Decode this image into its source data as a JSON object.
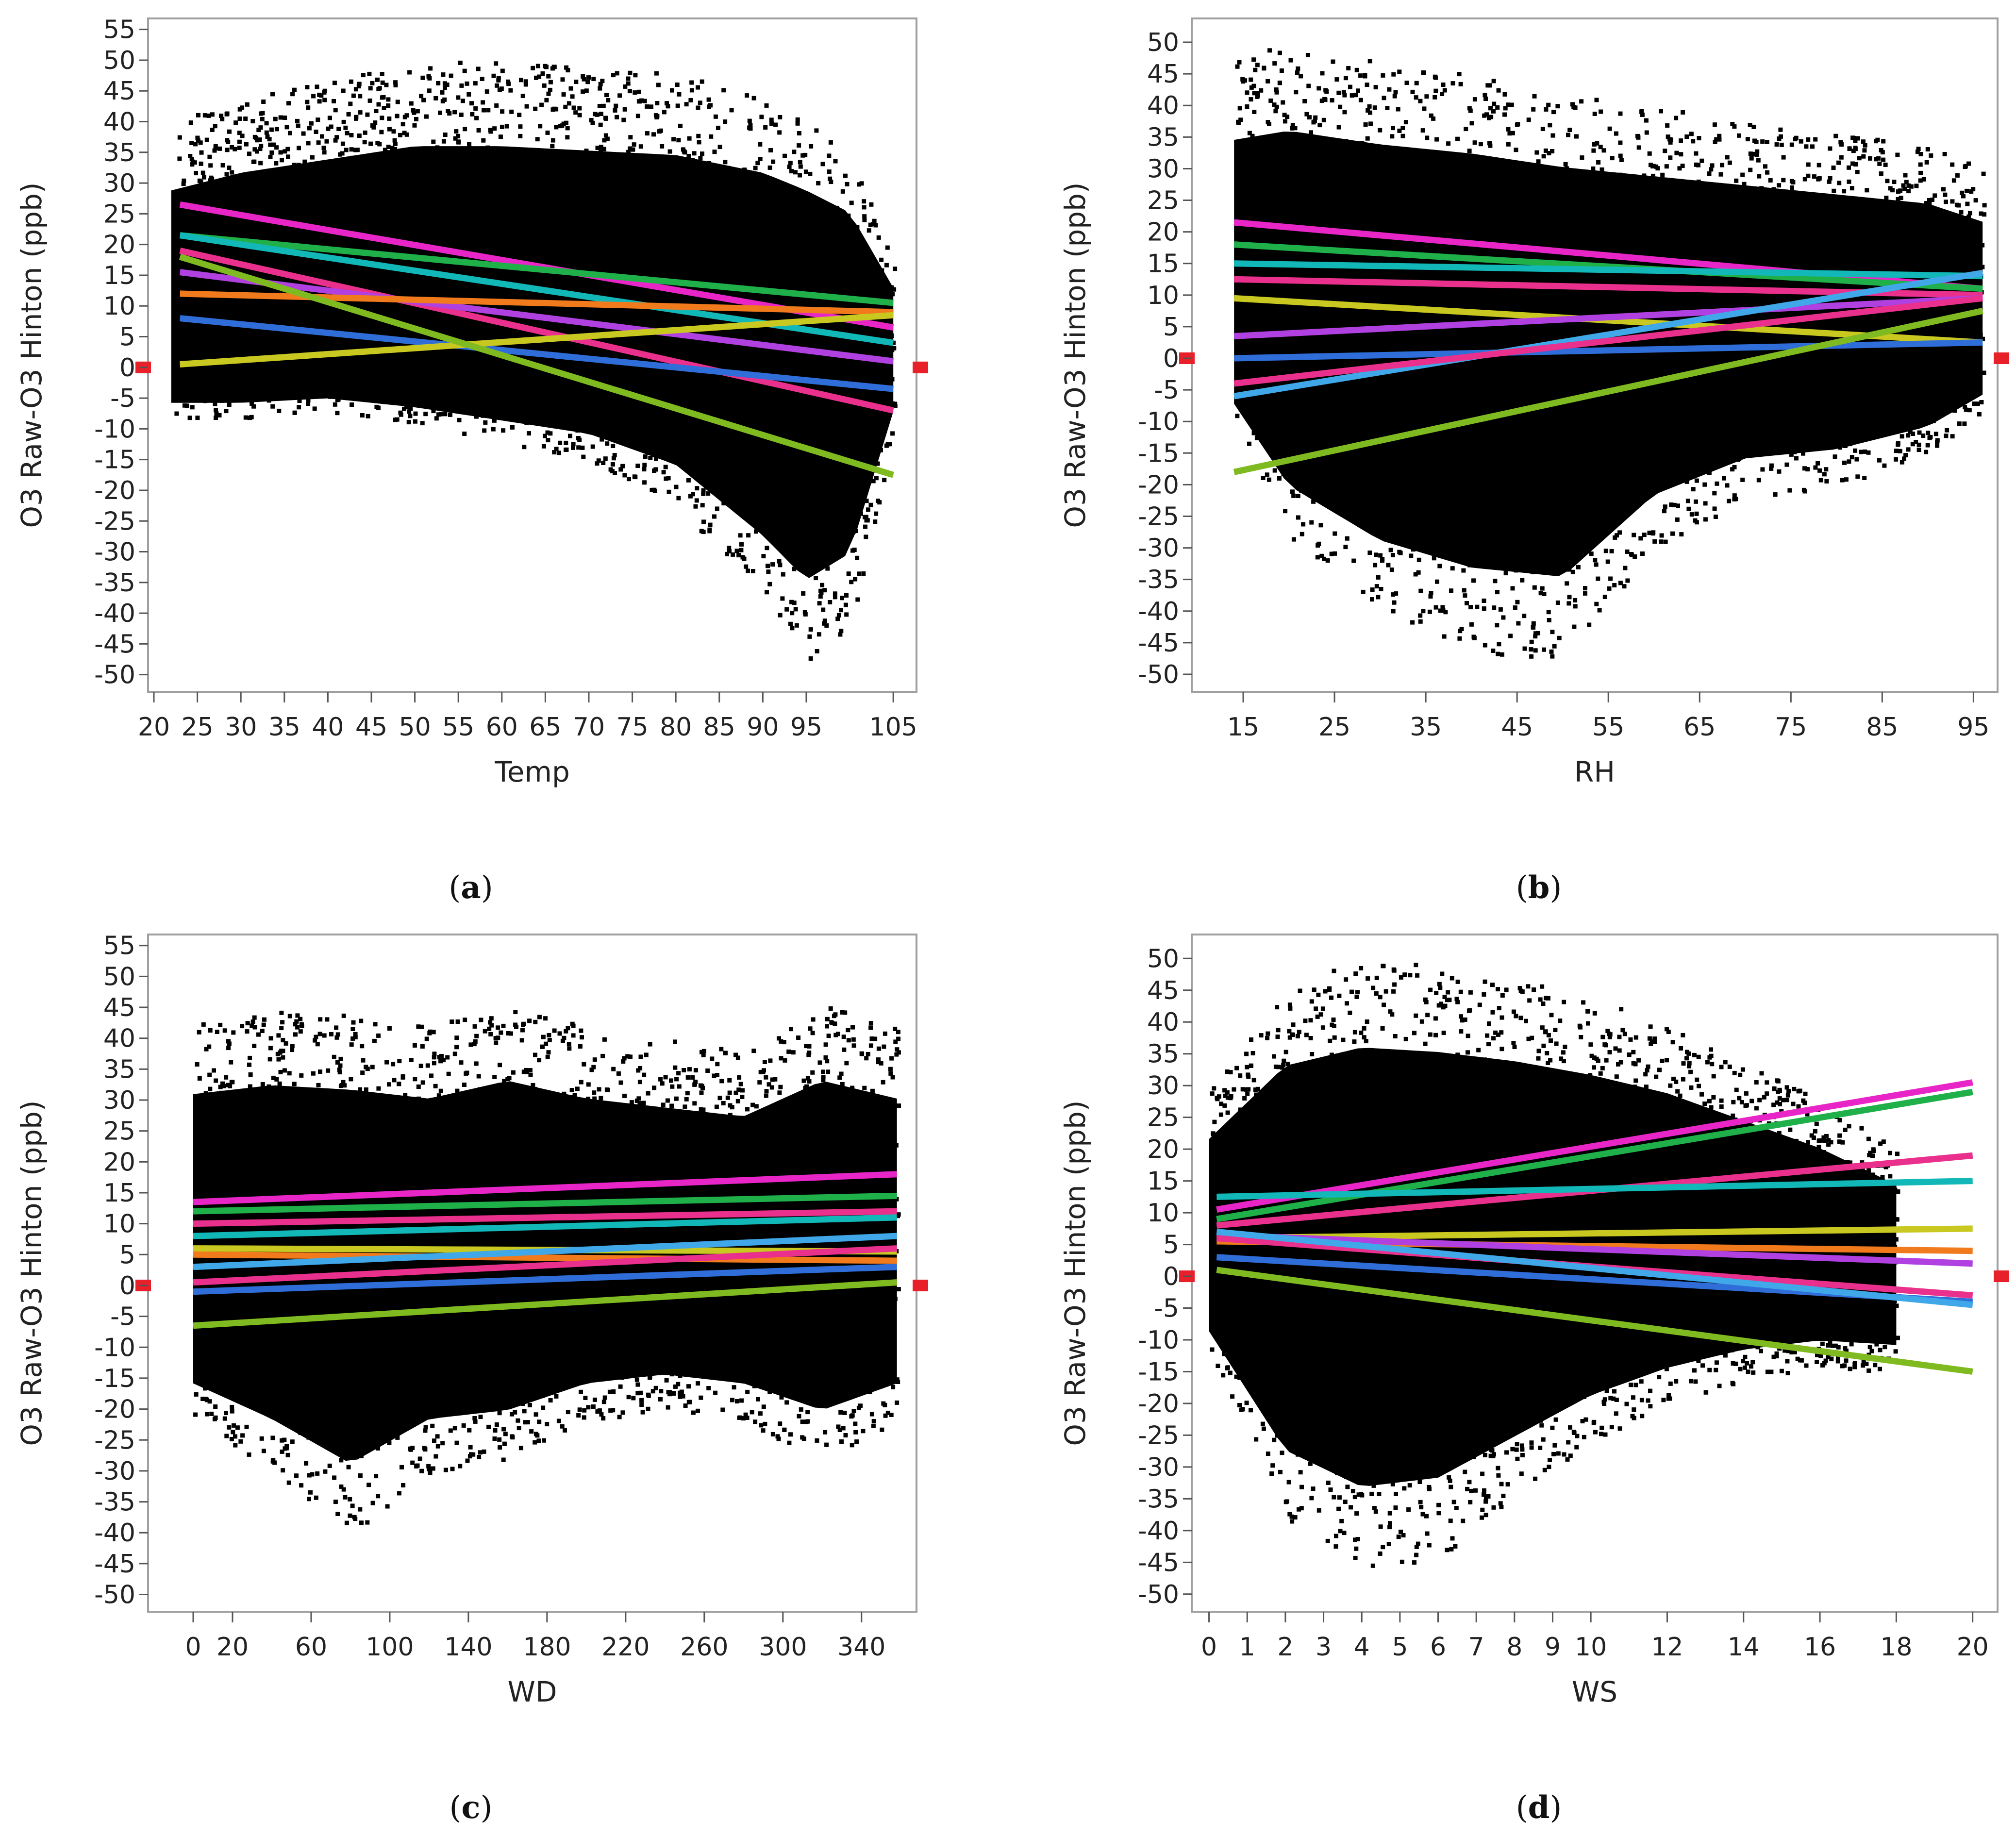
{
  "colors": {
    "scatter": "#000000",
    "frame": "#a0a0a0",
    "ref_marker": "#e8202a",
    "magenta": "#e826c8",
    "green": "#1fb04a",
    "teal": "#12b8b8",
    "pink": "#e8308c",
    "blue": "#2f6ed8",
    "orange": "#f07a1c",
    "yellow": "#c8c820",
    "lime": "#7fbb20",
    "violet": "#b040e0",
    "sky": "#40a8e8"
  },
  "chart_data": [
    {
      "panel": "a",
      "type": "scatter",
      "caption": "a",
      "xlabel": "Temp",
      "ylabel": "O3 Raw-O3 Hinton (ppb)",
      "xlim": [
        20,
        107
      ],
      "ylim": [
        -52,
        56
      ],
      "xticks": [
        20,
        25,
        30,
        35,
        40,
        45,
        50,
        55,
        60,
        65,
        70,
        75,
        80,
        85,
        90,
        95,
        105
      ],
      "yticks": [
        55,
        50,
        45,
        40,
        35,
        30,
        25,
        20,
        15,
        10,
        5,
        0,
        -5,
        -10,
        -15,
        -20,
        -25,
        -30,
        -35,
        -40,
        -45,
        -50
      ],
      "reference_y": 0,
      "scatter_envelope": {
        "x": [
          22,
          30,
          40,
          50,
          60,
          70,
          80,
          90,
          95,
          100,
          105
        ],
        "upper": [
          40,
          44,
          47,
          50,
          50,
          49,
          48,
          44,
          40,
          35,
          18
        ],
        "lower": [
          -8,
          -8,
          -7,
          -9,
          -12,
          -15,
          -22,
          -38,
          -48,
          -42,
          -10
        ]
      },
      "series": [
        {
          "color": "magenta",
          "x": [
            23,
            105
          ],
          "y": [
            26.5,
            6.5
          ]
        },
        {
          "color": "green",
          "x": [
            23,
            105
          ],
          "y": [
            21.5,
            10.5
          ]
        },
        {
          "color": "teal",
          "x": [
            23,
            105
          ],
          "y": [
            21.5,
            4
          ]
        },
        {
          "color": "pink",
          "x": [
            23,
            105
          ],
          "y": [
            19,
            -7
          ]
        },
        {
          "color": "violet",
          "x": [
            23,
            105
          ],
          "y": [
            15.5,
            1
          ]
        },
        {
          "color": "orange",
          "x": [
            23,
            105
          ],
          "y": [
            12,
            9
          ]
        },
        {
          "color": "blue",
          "x": [
            23,
            105
          ],
          "y": [
            8,
            -3.5
          ]
        },
        {
          "color": "yellow",
          "x": [
            23,
            105
          ],
          "y": [
            0.5,
            8.5
          ]
        },
        {
          "color": "lime",
          "x": [
            23,
            105
          ],
          "y": [
            18,
            -17.5
          ]
        }
      ]
    },
    {
      "panel": "b",
      "type": "scatter",
      "caption": "b",
      "xlabel": "RH",
      "ylabel": "O3 Raw-O3 Hinton (ppb)",
      "xlim": [
        10,
        97
      ],
      "ylim": [
        -52,
        53
      ],
      "xticks": [
        15,
        25,
        35,
        45,
        55,
        65,
        75,
        85,
        95
      ],
      "yticks": [
        50,
        45,
        40,
        35,
        30,
        25,
        20,
        15,
        10,
        5,
        0,
        -5,
        -10,
        -15,
        -20,
        -25,
        -30,
        -35,
        -40,
        -45,
        -50
      ],
      "reference_y": 0,
      "scatter_envelope": {
        "x": [
          14,
          20,
          30,
          40,
          50,
          60,
          70,
          80,
          90,
          96
        ],
        "upper": [
          48,
          50,
          47,
          45,
          42,
          40,
          38,
          36,
          34,
          30
        ],
        "lower": [
          -10,
          -28,
          -40,
          -46,
          -48,
          -30,
          -22,
          -20,
          -15,
          -8
        ]
      },
      "series": [
        {
          "color": "magenta",
          "x": [
            14,
            96
          ],
          "y": [
            21.5,
            11
          ]
        },
        {
          "color": "green",
          "x": [
            14,
            96
          ],
          "y": [
            18,
            11
          ]
        },
        {
          "color": "teal",
          "x": [
            14,
            96
          ],
          "y": [
            15,
            13
          ]
        },
        {
          "color": "pink",
          "x": [
            14,
            96
          ],
          "y": [
            12.5,
            10
          ]
        },
        {
          "color": "yellow",
          "x": [
            14,
            96
          ],
          "y": [
            9.5,
            2.5
          ]
        },
        {
          "color": "violet",
          "x": [
            14,
            96
          ],
          "y": [
            3.5,
            9.5
          ]
        },
        {
          "color": "blue",
          "x": [
            14,
            96
          ],
          "y": [
            0,
            2.5
          ]
        },
        {
          "color": "sky",
          "x": [
            14,
            96
          ],
          "y": [
            -6,
            13.5
          ]
        },
        {
          "color": "pink",
          "x": [
            14,
            96
          ],
          "y": [
            -4,
            9.5
          ]
        },
        {
          "color": "lime",
          "x": [
            14,
            96
          ],
          "y": [
            -18,
            7.5
          ]
        }
      ]
    },
    {
      "panel": "c",
      "type": "scatter",
      "caption": "c",
      "xlabel": "WD",
      "ylabel": "O3 Raw-O3 Hinton (ppb)",
      "xlim": [
        -20,
        365
      ],
      "ylim": [
        -52,
        56
      ],
      "xticks": [
        0,
        20,
        60,
        100,
        140,
        180,
        220,
        260,
        300,
        340
      ],
      "yticks": [
        55,
        50,
        45,
        40,
        35,
        30,
        25,
        20,
        15,
        10,
        5,
        0,
        -5,
        -10,
        -15,
        -20,
        -25,
        -30,
        -35,
        -40,
        -45,
        -50
      ],
      "reference_y": 0,
      "scatter_envelope": {
        "x": [
          0,
          40,
          80,
          120,
          160,
          200,
          240,
          280,
          320,
          358
        ],
        "upper": [
          43,
          45,
          44,
          42,
          46,
          42,
          40,
          38,
          46,
          42
        ],
        "lower": [
          -22,
          -30,
          -40,
          -30,
          -28,
          -22,
          -20,
          -22,
          -28,
          -22
        ]
      },
      "series": [
        {
          "color": "magenta",
          "x": [
            0,
            358
          ],
          "y": [
            13.5,
            18
          ]
        },
        {
          "color": "green",
          "x": [
            0,
            358
          ],
          "y": [
            12,
            14.5
          ]
        },
        {
          "color": "pink",
          "x": [
            0,
            358
          ],
          "y": [
            10,
            12
          ]
        },
        {
          "color": "teal",
          "x": [
            0,
            358
          ],
          "y": [
            8,
            11
          ]
        },
        {
          "color": "yellow",
          "x": [
            0,
            358
          ],
          "y": [
            6,
            5.5
          ]
        },
        {
          "color": "orange",
          "x": [
            0,
            358
          ],
          "y": [
            5,
            4
          ]
        },
        {
          "color": "sky",
          "x": [
            0,
            358
          ],
          "y": [
            3,
            8
          ]
        },
        {
          "color": "pink",
          "x": [
            0,
            358
          ],
          "y": [
            0.5,
            6
          ]
        },
        {
          "color": "blue",
          "x": [
            0,
            358
          ],
          "y": [
            -1,
            3
          ]
        },
        {
          "color": "lime",
          "x": [
            0,
            358
          ],
          "y": [
            -6.5,
            0.5
          ]
        }
      ]
    },
    {
      "panel": "d",
      "type": "scatter",
      "caption": "d",
      "xlabel": "WS",
      "ylabel": "O3 Raw-O3 Hinton (ppb)",
      "xlim": [
        -0.3,
        20.5
      ],
      "ylim": [
        -52,
        53
      ],
      "xticks": [
        0,
        1,
        2,
        3,
        4,
        5,
        6,
        7,
        8,
        9,
        10,
        12,
        14,
        16,
        18,
        20
      ],
      "yticks": [
        50,
        45,
        40,
        35,
        30,
        25,
        20,
        15,
        10,
        5,
        0,
        -5,
        -10,
        -15,
        -20,
        -25,
        -30,
        -35,
        -40,
        -45,
        -50
      ],
      "reference_y": 0,
      "scatter_envelope": {
        "x": [
          0,
          2,
          4,
          6,
          8,
          10,
          12,
          14,
          16,
          18
        ],
        "upper": [
          30,
          46,
          50,
          49,
          47,
          44,
          40,
          34,
          28,
          20
        ],
        "lower": [
          -12,
          -38,
          -46,
          -44,
          -35,
          -26,
          -20,
          -16,
          -14,
          -15
        ]
      },
      "series": [
        {
          "color": "magenta",
          "x": [
            0.2,
            20
          ],
          "y": [
            10.5,
            30.5
          ]
        },
        {
          "color": "green",
          "x": [
            0.2,
            20
          ],
          "y": [
            9,
            29
          ]
        },
        {
          "color": "pink",
          "x": [
            0.2,
            20
          ],
          "y": [
            8,
            19
          ]
        },
        {
          "color": "teal",
          "x": [
            0.2,
            20
          ],
          "y": [
            12.5,
            15
          ]
        },
        {
          "color": "yellow",
          "x": [
            0.2,
            20
          ],
          "y": [
            6,
            7.5
          ]
        },
        {
          "color": "orange",
          "x": [
            0.2,
            20
          ],
          "y": [
            5.5,
            4
          ]
        },
        {
          "color": "violet",
          "x": [
            0.2,
            20
          ],
          "y": [
            6.5,
            2
          ]
        },
        {
          "color": "pink",
          "x": [
            0.2,
            20
          ],
          "y": [
            6,
            -3
          ]
        },
        {
          "color": "blue",
          "x": [
            0.2,
            20
          ],
          "y": [
            3,
            -4
          ]
        },
        {
          "color": "sky",
          "x": [
            0.2,
            20
          ],
          "y": [
            7,
            -4.5
          ]
        },
        {
          "color": "lime",
          "x": [
            0.2,
            20
          ],
          "y": [
            1,
            -15
          ]
        }
      ]
    }
  ]
}
